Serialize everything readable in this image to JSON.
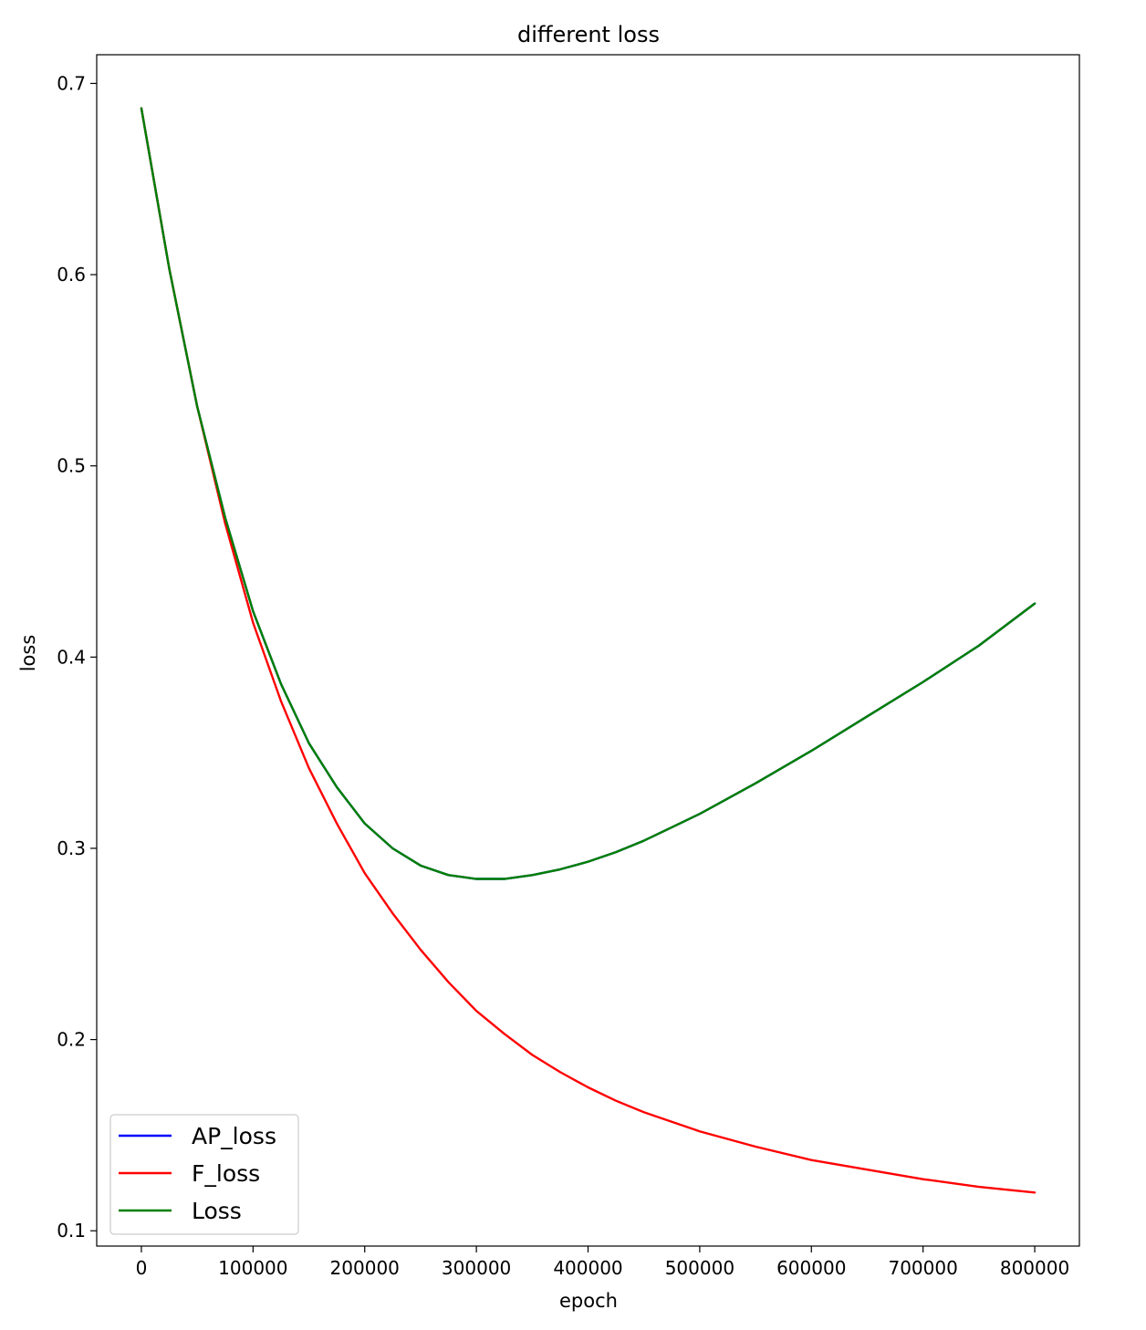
{
  "chart_data": {
    "type": "line",
    "title": "different loss",
    "xlabel": "epoch",
    "ylabel": "loss",
    "xlim": [
      -40000,
      840000
    ],
    "ylim": [
      0.092,
      0.715
    ],
    "xticks": [
      0,
      100000,
      200000,
      300000,
      400000,
      500000,
      600000,
      700000,
      800000
    ],
    "yticks": [
      0.1,
      0.2,
      0.3,
      0.4,
      0.5,
      0.6,
      0.7
    ],
    "grid": false,
    "legend_position": "bottom-left",
    "series": [
      {
        "name": "AP_loss",
        "color": "#0000ff",
        "x": [
          0,
          25000,
          50000,
          75000,
          100000,
          125000,
          150000,
          175000,
          200000,
          225000,
          250000,
          275000,
          300000,
          325000,
          350000,
          375000,
          400000,
          425000,
          450000,
          475000,
          500000,
          550000,
          600000,
          650000,
          700000,
          750000,
          800000
        ],
        "y": [
          0.687,
          0.603,
          0.531,
          0.473,
          0.424,
          0.386,
          0.355,
          0.332,
          0.313,
          0.3,
          0.291,
          0.286,
          0.284,
          0.284,
          0.286,
          0.289,
          0.293,
          0.298,
          0.304,
          0.311,
          0.318,
          0.334,
          0.351,
          0.369,
          0.387,
          0.406,
          0.428
        ]
      },
      {
        "name": "F_loss",
        "color": "#ff0000",
        "x": [
          0,
          25000,
          50000,
          75000,
          100000,
          125000,
          150000,
          175000,
          200000,
          225000,
          250000,
          275000,
          300000,
          325000,
          350000,
          375000,
          400000,
          425000,
          450000,
          475000,
          500000,
          550000,
          600000,
          650000,
          700000,
          750000,
          800000
        ],
        "y": [
          0.687,
          0.603,
          0.531,
          0.47,
          0.418,
          0.377,
          0.342,
          0.313,
          0.287,
          0.266,
          0.247,
          0.23,
          0.215,
          0.203,
          0.192,
          0.183,
          0.175,
          0.168,
          0.162,
          0.157,
          0.152,
          0.144,
          0.137,
          0.132,
          0.127,
          0.123,
          0.12
        ]
      },
      {
        "name": "Loss",
        "color": "#008000",
        "x": [
          0,
          25000,
          50000,
          75000,
          100000,
          125000,
          150000,
          175000,
          200000,
          225000,
          250000,
          275000,
          300000,
          325000,
          350000,
          375000,
          400000,
          425000,
          450000,
          475000,
          500000,
          550000,
          600000,
          650000,
          700000,
          750000,
          800000
        ],
        "y": [
          0.687,
          0.603,
          0.531,
          0.473,
          0.424,
          0.386,
          0.355,
          0.332,
          0.313,
          0.3,
          0.291,
          0.286,
          0.284,
          0.284,
          0.286,
          0.289,
          0.293,
          0.298,
          0.304,
          0.311,
          0.318,
          0.334,
          0.351,
          0.369,
          0.387,
          0.406,
          0.428
        ]
      }
    ]
  }
}
